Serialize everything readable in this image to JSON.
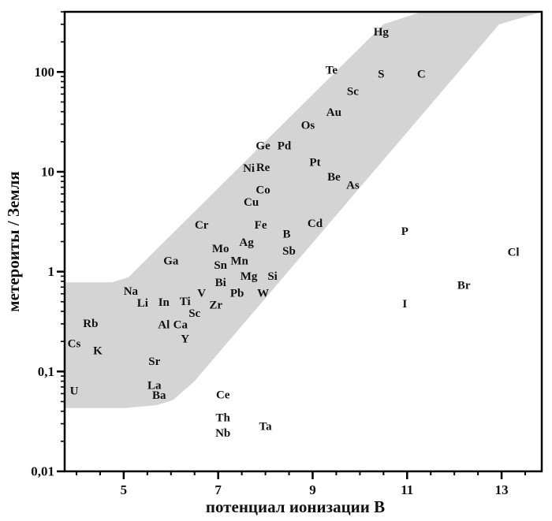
{
  "chart_data": {
    "type": "scatter",
    "title": "",
    "xlabel": "потенциал ионизации  В",
    "ylabel": "метероиты / Земля",
    "xlim": [
      3.75,
      13.85
    ],
    "ylim": [
      0.01,
      400
    ],
    "yscale": "log",
    "x_ticks": [
      {
        "value": 5,
        "label": "5"
      },
      {
        "value": 7,
        "label": "7"
      },
      {
        "value": 9,
        "label": "9"
      },
      {
        "value": 11,
        "label": "11"
      },
      {
        "value": 13,
        "label": "13"
      }
    ],
    "x_minor_ticks": [
      4,
      4.5,
      5.5,
      6,
      6.5,
      7.5,
      8,
      8.5,
      9.5,
      10,
      10.5,
      11.5,
      12,
      12.5,
      13.5
    ],
    "y_ticks": [
      {
        "value": 0.01,
        "label": "0,01"
      },
      {
        "value": 0.1,
        "label": "0,1"
      },
      {
        "value": 1,
        "label": "1"
      },
      {
        "value": 10,
        "label": "10"
      },
      {
        "value": 100,
        "label": "100"
      }
    ],
    "band": {
      "color": "#d4d4d4",
      "upper": [
        [
          3.75,
          0.78
        ],
        [
          4.75,
          0.78
        ],
        [
          5.1,
          0.88
        ],
        [
          10.5,
          300
        ],
        [
          11.3,
          500
        ],
        [
          13.85,
          500
        ]
      ],
      "lower": [
        [
          13.85,
          450
        ],
        [
          12.95,
          300
        ],
        [
          6.5,
          0.08
        ],
        [
          6.05,
          0.052
        ],
        [
          5.7,
          0.046
        ],
        [
          5.0,
          0.043
        ],
        [
          3.75,
          0.043
        ]
      ]
    },
    "points": [
      {
        "label": "Hg",
        "x": 10.45,
        "y": 250
      },
      {
        "label": "Te",
        "x": 9.4,
        "y": 103
      },
      {
        "label": "S",
        "x": 10.45,
        "y": 94
      },
      {
        "label": "C",
        "x": 11.3,
        "y": 94
      },
      {
        "label": "Sc",
        "x": 9.85,
        "y": 63
      },
      {
        "label": "Au",
        "x": 9.45,
        "y": 39
      },
      {
        "label": "Os",
        "x": 8.9,
        "y": 29
      },
      {
        "label": "Ge",
        "x": 7.95,
        "y": 18
      },
      {
        "label": "Pd",
        "x": 8.4,
        "y": 18
      },
      {
        "label": "Pt",
        "x": 9.05,
        "y": 12.3
      },
      {
        "label": "Ni",
        "x": 7.65,
        "y": 10.7
      },
      {
        "label": "Re",
        "x": 7.95,
        "y": 10.9
      },
      {
        "label": "Be",
        "x": 9.45,
        "y": 8.8
      },
      {
        "label": "As",
        "x": 9.85,
        "y": 7.3
      },
      {
        "label": "Co",
        "x": 7.95,
        "y": 6.5
      },
      {
        "label": "Cu",
        "x": 7.7,
        "y": 4.9
      },
      {
        "label": "Cr",
        "x": 6.65,
        "y": 2.9
      },
      {
        "label": "Fe",
        "x": 7.9,
        "y": 2.9
      },
      {
        "label": "Cd",
        "x": 9.05,
        "y": 3.0
      },
      {
        "label": "B",
        "x": 8.45,
        "y": 2.35
      },
      {
        "label": "Ag",
        "x": 7.6,
        "y": 1.95
      },
      {
        "label": "Mo",
        "x": 7.05,
        "y": 1.68
      },
      {
        "label": "Sb",
        "x": 8.5,
        "y": 1.6
      },
      {
        "label": "Ga",
        "x": 6.0,
        "y": 1.27
      },
      {
        "label": "Sn",
        "x": 7.05,
        "y": 1.15
      },
      {
        "label": "Mn",
        "x": 7.45,
        "y": 1.27
      },
      {
        "label": "Si",
        "x": 8.15,
        "y": 0.89
      },
      {
        "label": "Mg",
        "x": 7.65,
        "y": 0.89
      },
      {
        "label": "Bi",
        "x": 7.05,
        "y": 0.77
      },
      {
        "label": "Na",
        "x": 5.15,
        "y": 0.63
      },
      {
        "label": "V",
        "x": 6.65,
        "y": 0.6
      },
      {
        "label": "Pb",
        "x": 7.4,
        "y": 0.6
      },
      {
        "label": "W",
        "x": 7.95,
        "y": 0.6
      },
      {
        "label": "Li",
        "x": 5.4,
        "y": 0.48
      },
      {
        "label": "In",
        "x": 5.85,
        "y": 0.49
      },
      {
        "label": "Ti",
        "x": 6.3,
        "y": 0.5
      },
      {
        "label": "Zr",
        "x": 6.95,
        "y": 0.46
      },
      {
        "label": "Sc",
        "x": 6.5,
        "y": 0.38
      },
      {
        "label": "Rb",
        "x": 4.3,
        "y": 0.3
      },
      {
        "label": "Al",
        "x": 5.85,
        "y": 0.29
      },
      {
        "label": "Ca",
        "x": 6.2,
        "y": 0.29
      },
      {
        "label": "Y",
        "x": 6.3,
        "y": 0.21
      },
      {
        "label": "Cs",
        "x": 3.95,
        "y": 0.188
      },
      {
        "label": "K",
        "x": 4.45,
        "y": 0.16
      },
      {
        "label": "Sr",
        "x": 5.65,
        "y": 0.125
      },
      {
        "label": "La",
        "x": 5.65,
        "y": 0.072
      },
      {
        "label": "Ba",
        "x": 5.75,
        "y": 0.057
      },
      {
        "label": "U",
        "x": 3.95,
        "y": 0.063
      },
      {
        "label": "Ce",
        "x": 7.1,
        "y": 0.058
      },
      {
        "label": "Th",
        "x": 7.1,
        "y": 0.034
      },
      {
        "label": "Nb",
        "x": 7.1,
        "y": 0.024
      },
      {
        "label": "Ta",
        "x": 8.0,
        "y": 0.028
      },
      {
        "label": "P",
        "x": 10.95,
        "y": 2.5
      },
      {
        "label": "Cl",
        "x": 13.25,
        "y": 1.55
      },
      {
        "label": "Br",
        "x": 12.2,
        "y": 0.72
      },
      {
        "label": "I",
        "x": 10.95,
        "y": 0.47
      }
    ]
  }
}
